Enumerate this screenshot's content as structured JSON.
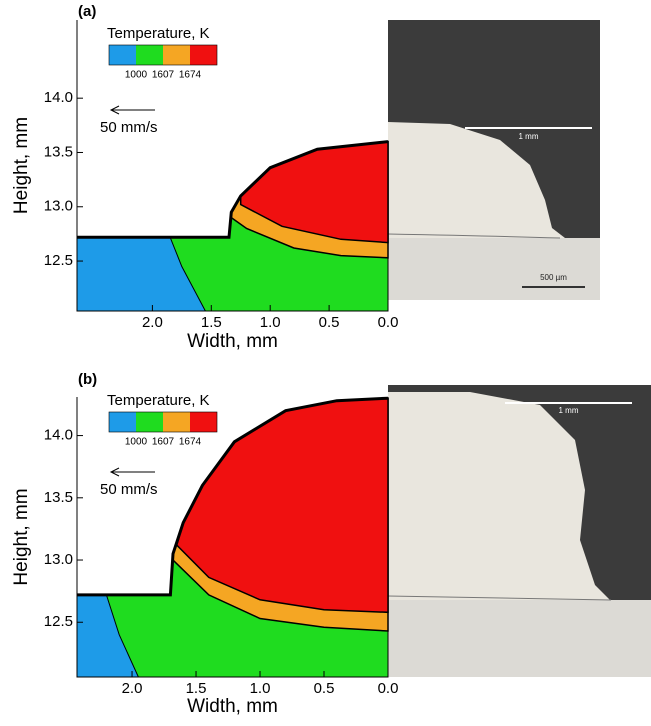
{
  "chart_data": [
    {
      "type": "contour",
      "panel_label": "(a)",
      "legend_title": "Temperature, K",
      "levels": [
        1000,
        1607,
        1674
      ],
      "colors": [
        "#1e9be8",
        "#1fdc1f",
        "#f5a623",
        "#f01010"
      ],
      "reference_vector_label": "50 mm/s",
      "xlabel": "Width, mm",
      "ylabel": "Height, mm",
      "xlim": [
        2.64,
        0
      ],
      "ylim": [
        12.04,
        14.72
      ],
      "xticks": [
        {
          "value": 2,
          "label": "2.0"
        },
        1.5,
        {
          "value": 1,
          "label": "1.0"
        },
        0.5,
        {
          "value": 0,
          "label": "0.0"
        }
      ],
      "yticks": [
        12.5,
        {
          "value": 13,
          "label": "13.0"
        },
        13.5,
        {
          "value": 14,
          "label": "14.0"
        }
      ],
      "scale_bars": [
        "1 mm",
        "500 µm"
      ]
    },
    {
      "type": "contour",
      "panel_label": "(b)",
      "legend_title": "Temperature, K",
      "levels": [
        1000,
        1607,
        1674
      ],
      "colors": [
        "#1e9be8",
        "#1fdc1f",
        "#f5a623",
        "#f01010"
      ],
      "reference_vector_label": "50 mm/s",
      "xlabel": "Width, mm",
      "ylabel": "Height, mm",
      "xlim": [
        2.43,
        0
      ],
      "ylim": [
        12.06,
        14.31
      ],
      "xticks": [
        {
          "value": 2,
          "label": "2.0"
        },
        1.5,
        {
          "value": 1,
          "label": "1.0"
        },
        0.5,
        {
          "value": 0,
          "label": "0.0"
        }
      ],
      "yticks": [
        12.5,
        {
          "value": 13,
          "label": "13.0"
        },
        13.5,
        {
          "value": 14,
          "label": "14.0"
        }
      ],
      "scale_bars": [
        "1 mm"
      ]
    }
  ]
}
